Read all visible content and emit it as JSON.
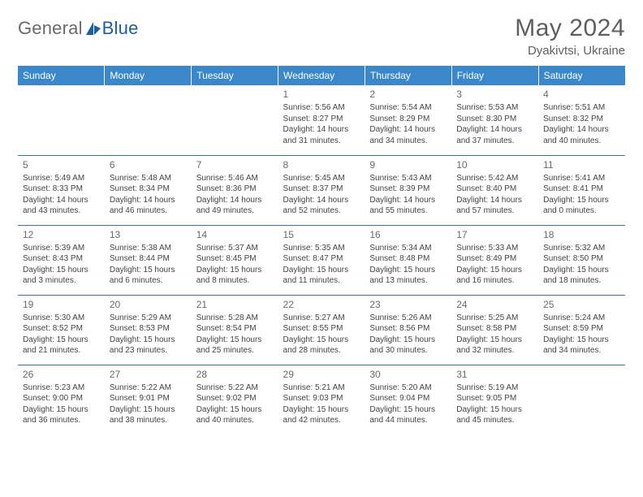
{
  "brand": {
    "name_a": "General",
    "name_b": "Blue",
    "logo_color": "#1a5fa3"
  },
  "title": "May 2024",
  "location": "Dyakivtsi, Ukraine",
  "colors": {
    "header_bg": "#3a87c9",
    "header_text": "#ffffff",
    "divider": "#3a6fa3",
    "body_text": "#444444",
    "title_text": "#5f5f5f"
  },
  "weekdays": [
    "Sunday",
    "Monday",
    "Tuesday",
    "Wednesday",
    "Thursday",
    "Friday",
    "Saturday"
  ],
  "weeks": [
    [
      null,
      null,
      null,
      {
        "d": "1",
        "sr": "5:56 AM",
        "ss": "8:27 PM",
        "dl": "14 hours and 31 minutes."
      },
      {
        "d": "2",
        "sr": "5:54 AM",
        "ss": "8:29 PM",
        "dl": "14 hours and 34 minutes."
      },
      {
        "d": "3",
        "sr": "5:53 AM",
        "ss": "8:30 PM",
        "dl": "14 hours and 37 minutes."
      },
      {
        "d": "4",
        "sr": "5:51 AM",
        "ss": "8:32 PM",
        "dl": "14 hours and 40 minutes."
      }
    ],
    [
      {
        "d": "5",
        "sr": "5:49 AM",
        "ss": "8:33 PM",
        "dl": "14 hours and 43 minutes."
      },
      {
        "d": "6",
        "sr": "5:48 AM",
        "ss": "8:34 PM",
        "dl": "14 hours and 46 minutes."
      },
      {
        "d": "7",
        "sr": "5:46 AM",
        "ss": "8:36 PM",
        "dl": "14 hours and 49 minutes."
      },
      {
        "d": "8",
        "sr": "5:45 AM",
        "ss": "8:37 PM",
        "dl": "14 hours and 52 minutes."
      },
      {
        "d": "9",
        "sr": "5:43 AM",
        "ss": "8:39 PM",
        "dl": "14 hours and 55 minutes."
      },
      {
        "d": "10",
        "sr": "5:42 AM",
        "ss": "8:40 PM",
        "dl": "14 hours and 57 minutes."
      },
      {
        "d": "11",
        "sr": "5:41 AM",
        "ss": "8:41 PM",
        "dl": "15 hours and 0 minutes."
      }
    ],
    [
      {
        "d": "12",
        "sr": "5:39 AM",
        "ss": "8:43 PM",
        "dl": "15 hours and 3 minutes."
      },
      {
        "d": "13",
        "sr": "5:38 AM",
        "ss": "8:44 PM",
        "dl": "15 hours and 6 minutes."
      },
      {
        "d": "14",
        "sr": "5:37 AM",
        "ss": "8:45 PM",
        "dl": "15 hours and 8 minutes."
      },
      {
        "d": "15",
        "sr": "5:35 AM",
        "ss": "8:47 PM",
        "dl": "15 hours and 11 minutes."
      },
      {
        "d": "16",
        "sr": "5:34 AM",
        "ss": "8:48 PM",
        "dl": "15 hours and 13 minutes."
      },
      {
        "d": "17",
        "sr": "5:33 AM",
        "ss": "8:49 PM",
        "dl": "15 hours and 16 minutes."
      },
      {
        "d": "18",
        "sr": "5:32 AM",
        "ss": "8:50 PM",
        "dl": "15 hours and 18 minutes."
      }
    ],
    [
      {
        "d": "19",
        "sr": "5:30 AM",
        "ss": "8:52 PM",
        "dl": "15 hours and 21 minutes."
      },
      {
        "d": "20",
        "sr": "5:29 AM",
        "ss": "8:53 PM",
        "dl": "15 hours and 23 minutes."
      },
      {
        "d": "21",
        "sr": "5:28 AM",
        "ss": "8:54 PM",
        "dl": "15 hours and 25 minutes."
      },
      {
        "d": "22",
        "sr": "5:27 AM",
        "ss": "8:55 PM",
        "dl": "15 hours and 28 minutes."
      },
      {
        "d": "23",
        "sr": "5:26 AM",
        "ss": "8:56 PM",
        "dl": "15 hours and 30 minutes."
      },
      {
        "d": "24",
        "sr": "5:25 AM",
        "ss": "8:58 PM",
        "dl": "15 hours and 32 minutes."
      },
      {
        "d": "25",
        "sr": "5:24 AM",
        "ss": "8:59 PM",
        "dl": "15 hours and 34 minutes."
      }
    ],
    [
      {
        "d": "26",
        "sr": "5:23 AM",
        "ss": "9:00 PM",
        "dl": "15 hours and 36 minutes."
      },
      {
        "d": "27",
        "sr": "5:22 AM",
        "ss": "9:01 PM",
        "dl": "15 hours and 38 minutes."
      },
      {
        "d": "28",
        "sr": "5:22 AM",
        "ss": "9:02 PM",
        "dl": "15 hours and 40 minutes."
      },
      {
        "d": "29",
        "sr": "5:21 AM",
        "ss": "9:03 PM",
        "dl": "15 hours and 42 minutes."
      },
      {
        "d": "30",
        "sr": "5:20 AM",
        "ss": "9:04 PM",
        "dl": "15 hours and 44 minutes."
      },
      {
        "d": "31",
        "sr": "5:19 AM",
        "ss": "9:05 PM",
        "dl": "15 hours and 45 minutes."
      },
      null
    ]
  ],
  "labels": {
    "sunrise": "Sunrise:",
    "sunset": "Sunset:",
    "daylight": "Daylight:"
  }
}
